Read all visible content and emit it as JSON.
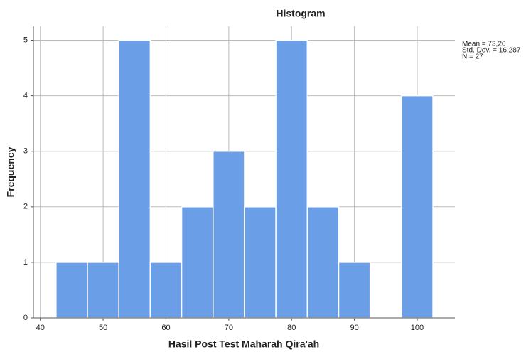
{
  "chart_data": {
    "type": "histogram",
    "title": "Histogram",
    "x_label": "Hasil Post Test Maharah Qira'ah",
    "y_label": "Frequency",
    "bins": [
      42.5,
      47.5,
      52.5,
      57.5,
      62.5,
      67.5,
      72.5,
      77.5,
      82.5,
      87.5,
      92.5,
      97.5,
      102.5
    ],
    "values": [
      1,
      1,
      5,
      1,
      2,
      3,
      2,
      5,
      2,
      1,
      0,
      4
    ],
    "color": "#6a9ee6",
    "xlim": [
      38.9,
      106
    ],
    "xticks": [
      40,
      50,
      60,
      70,
      80,
      90,
      100
    ],
    "ylim": [
      0,
      5.25
    ],
    "yticks": [
      0,
      1,
      2,
      3,
      4,
      5
    ],
    "grid": true,
    "stats": [
      "Mean = 73,26",
      "Std. Dev. = 16,287",
      "N = 27"
    ]
  }
}
